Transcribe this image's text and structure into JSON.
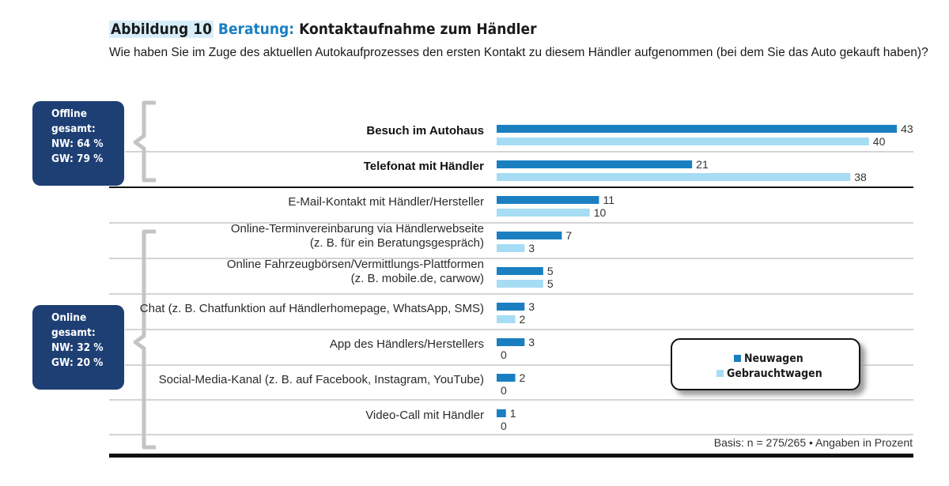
{
  "header": {
    "figure_number": "Abbildung 10",
    "category": "Beratung:",
    "title": "Kontaktaufnahme zum Händler",
    "subtitle": "Wie haben Sie im Zuge des aktuellen Autokaufprozesses den ersten Kontakt zu diesem Händler aufgenommen (bei dem Sie das Auto gekauft haben)?"
  },
  "badges": {
    "offline": [
      "Offline",
      "gesamt:",
      "NW: 64 %",
      "GW: 79 %"
    ],
    "online": [
      "Online",
      "gesamt:",
      "NW: 32 %",
      "GW: 20 %"
    ]
  },
  "legend": {
    "new_car": "Neuwagen",
    "used_car": "Gebrauchtwagen"
  },
  "footer": {
    "basis": "Basis: n = 275/265 • Angaben in Prozent"
  },
  "colors": {
    "new_car": "#1a7fc1",
    "used_car": "#a6dcf4",
    "badge": "#1d3f74",
    "bracket": "#c4c4c4"
  },
  "chart_data": {
    "type": "bar",
    "orientation": "horizontal",
    "categories": [
      [
        "Besuch im Autohaus"
      ],
      [
        "Telefonat mit Händler"
      ],
      [
        "E-Mail-Kontakt mit Händler/Hersteller"
      ],
      [
        "Online-Terminvereinbarung via Händlerwebseite",
        "(z. B. für ein Beratungsgespräch)"
      ],
      [
        "Online Fahrzeugbörsen/Vermittlungs-Plattformen",
        "(z. B. mobile.de, carwow)"
      ],
      [
        "Chat (z. B. Chatfunktion auf Händlerhomepage, WhatsApp, SMS)"
      ],
      [
        "App des Händlers/Herstellers"
      ],
      [
        "Social-Media-Kanal (z. B. auf Facebook, Instagram, YouTube)"
      ],
      [
        "Video-Call mit Händler"
      ]
    ],
    "bold_categories": [
      0,
      1
    ],
    "series": [
      {
        "name": "Neuwagen",
        "values": [
          43,
          21,
          11,
          7,
          5,
          3,
          3,
          2,
          1
        ]
      },
      {
        "name": "Gebrauchtwagen",
        "values": [
          40,
          38,
          10,
          3,
          5,
          2,
          0,
          0,
          0
        ]
      }
    ],
    "xlim": [
      0,
      43
    ]
  }
}
